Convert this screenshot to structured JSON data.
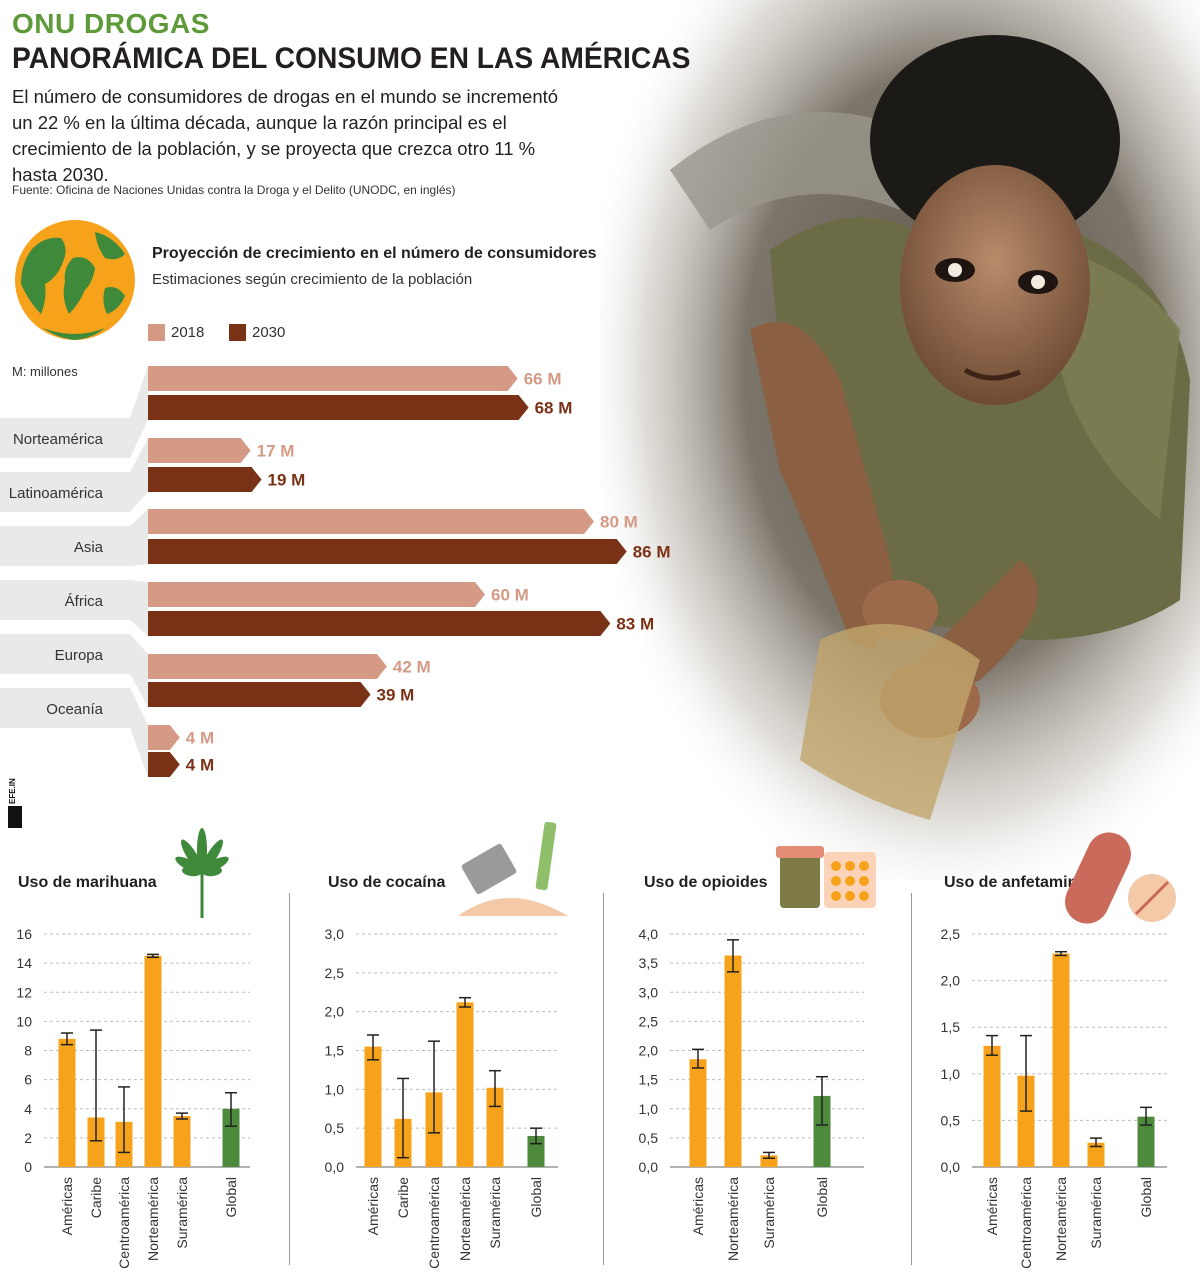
{
  "header": {
    "kicker": "ONU DROGAS",
    "headline": "PANORÁMICA DEL CONSUMO EN LAS AMÉRICAS",
    "intro": "El número de consumidores de drogas en el mundo se incrementó un 22 % en la última década, aunque la razón principal es el crecimiento de la población, y se proyecta que crezca otro 11 % hasta 2030.",
    "source": "Fuente:  Oficina de Naciones Unidas contra la Droga y el Delito (UNODC, en inglés)"
  },
  "projection": {
    "title": "Proyección de crecimiento en el número de consumidores",
    "subtitle": "Estimaciones según crecimiento de la población",
    "unit_note": "M: millones",
    "legend": [
      {
        "label": "2018",
        "color": "#d59a86"
      },
      {
        "label": "2030",
        "color": "#7a3217"
      }
    ]
  },
  "logo_text": "EFE.INK",
  "chart_data": [
    {
      "type": "bar",
      "orientation": "horizontal",
      "title": "Proyección de crecimiento en el número de consumidores",
      "categories": [
        "Norteamérica",
        "Latinoamérica",
        "Asia",
        "África",
        "Europa",
        "Oceanía"
      ],
      "series": [
        {
          "name": "2018",
          "values": [
            66,
            17,
            80,
            60,
            42,
            4
          ],
          "labels": [
            "66 M",
            "17 M",
            "80 M",
            "60 M",
            "42 M",
            "4 M"
          ],
          "color": "#d59a86"
        },
        {
          "name": "2030",
          "values": [
            68,
            19,
            86,
            83,
            39,
            4
          ],
          "labels": [
            "68 M",
            "19 M",
            "86 M",
            "83 M",
            "39 M",
            "4 M"
          ],
          "color": "#7a3217"
        }
      ]
    },
    {
      "type": "bar",
      "title": "Uso de marihuana",
      "icon": "cannabis-leaf-icon",
      "categories": [
        "Américas",
        "Caribe",
        "Centroamérica",
        "Norteamérica",
        "Suramérica",
        "Global"
      ],
      "values": [
        8.8,
        3.4,
        3.1,
        14.5,
        3.5,
        4.0
      ],
      "error_low": [
        8.4,
        1.8,
        1.0,
        14.4,
        3.3,
        2.8
      ],
      "error_high": [
        9.2,
        9.4,
        5.5,
        14.6,
        3.7,
        5.1
      ],
      "colors": [
        "#f7a21b",
        "#f7a21b",
        "#f7a21b",
        "#f7a21b",
        "#f7a21b",
        "#4e8a3b"
      ],
      "ylim": [
        0,
        16
      ],
      "ticks": [
        "0",
        "2",
        "4",
        "6",
        "8",
        "10",
        "12",
        "14",
        "16"
      ]
    },
    {
      "type": "bar",
      "title": "Uso de cocaína",
      "icon": "razor-blade-icon",
      "categories": [
        "Américas",
        "Caribe",
        "Centroamérica",
        "Norteamérica",
        "Suramérica",
        "Global"
      ],
      "values": [
        1.55,
        0.62,
        0.96,
        2.12,
        1.02,
        0.4
      ],
      "error_low": [
        1.38,
        0.12,
        0.44,
        2.06,
        0.78,
        0.3
      ],
      "error_high": [
        1.7,
        1.14,
        1.62,
        2.18,
        1.24,
        0.5
      ],
      "colors": [
        "#f7a21b",
        "#f7a21b",
        "#f7a21b",
        "#f7a21b",
        "#f7a21b",
        "#4e8a3b"
      ],
      "ylim": [
        0,
        3.0
      ],
      "ticks": [
        "0,0",
        "0,5",
        "1,0",
        "1,5",
        "2,0",
        "2,5",
        "3,0"
      ]
    },
    {
      "type": "bar",
      "title": "Uso de opioides",
      "icon": "pill-bottle-icon",
      "categories": [
        "Américas",
        "Norteamérica",
        "Suramérica",
        "Global"
      ],
      "values": [
        1.85,
        3.63,
        0.2,
        1.22
      ],
      "error_low": [
        1.7,
        3.35,
        0.15,
        0.72
      ],
      "error_high": [
        2.02,
        3.9,
        0.25,
        1.55
      ],
      "colors": [
        "#f7a21b",
        "#f7a21b",
        "#f7a21b",
        "#4e8a3b"
      ],
      "ylim": [
        0,
        4.0
      ],
      "ticks": [
        "0,0",
        "0,5",
        "1,0",
        "1,5",
        "2,0",
        "2,5",
        "3,0",
        "3,5",
        "4,0"
      ]
    },
    {
      "type": "bar",
      "title": "Uso de anfetamina",
      "icon": "pill-capsule-icon",
      "categories": [
        "Américas",
        "Centroamérica",
        "Norteamérica",
        "Suramérica",
        "Global"
      ],
      "values": [
        1.3,
        0.98,
        2.29,
        0.26,
        0.54
      ],
      "error_low": [
        1.2,
        0.6,
        2.27,
        0.22,
        0.45
      ],
      "error_high": [
        1.41,
        1.41,
        2.31,
        0.31,
        0.64
      ],
      "colors": [
        "#f7a21b",
        "#f7a21b",
        "#f7a21b",
        "#f7a21b",
        "#4e8a3b"
      ],
      "ylim": [
        0,
        2.5
      ],
      "ticks": [
        "0,0",
        "0,5",
        "1,0",
        "1,5",
        "2,0",
        "2,5"
      ]
    }
  ]
}
